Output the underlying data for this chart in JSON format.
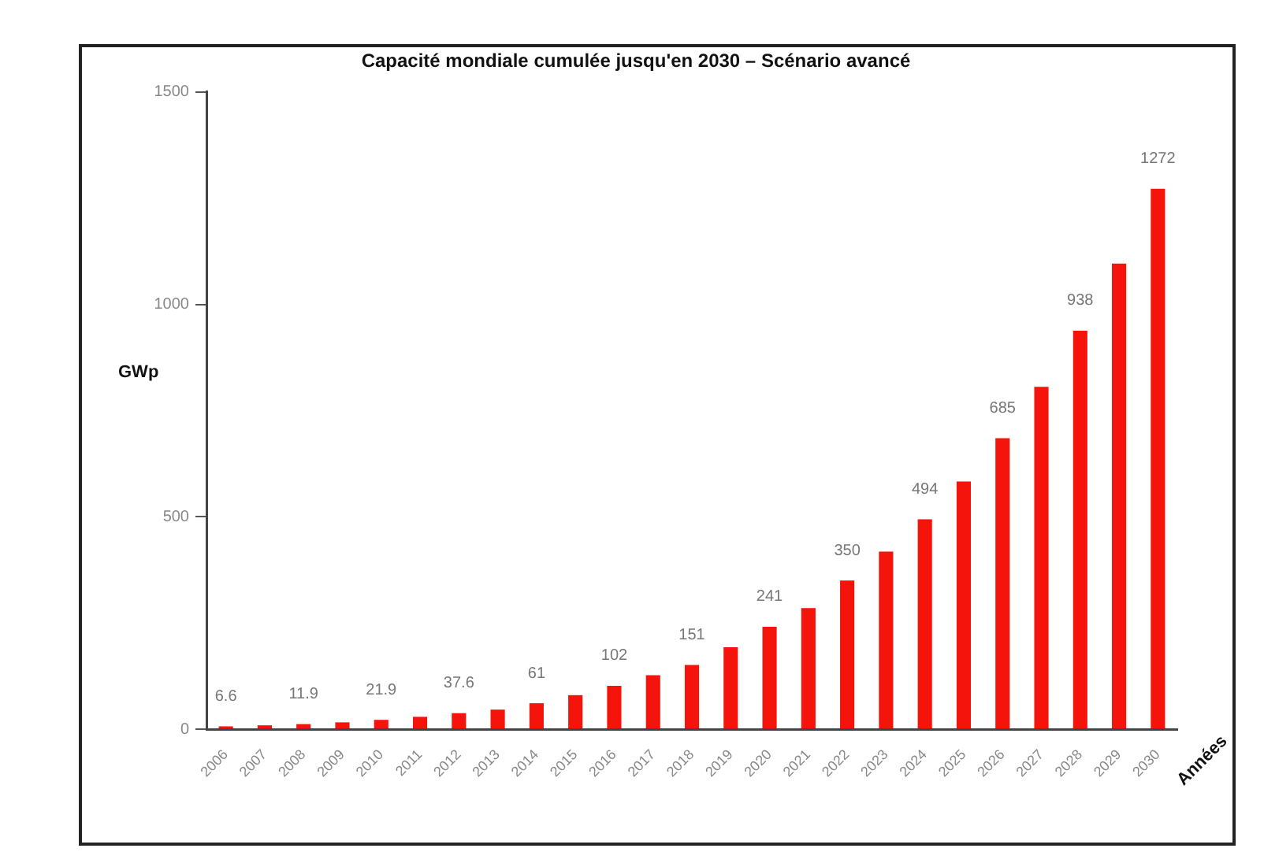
{
  "chart_data": {
    "type": "bar",
    "title": "Capacité mondiale cumulée jusqu'en 2030 – Scénario avancé",
    "xlabel": "Années",
    "ylabel": "GWp",
    "categories": [
      "2006",
      "2007",
      "2008",
      "2009",
      "2010",
      "2011",
      "2012",
      "2013",
      "2014",
      "2015",
      "2016",
      "2017",
      "2018",
      "2019",
      "2020",
      "2021",
      "2022",
      "2023",
      "2024",
      "2025",
      "2026",
      "2027",
      "2028",
      "2029",
      "2030"
    ],
    "values": [
      6.6,
      9,
      11.9,
      16,
      21.9,
      29,
      37.6,
      46,
      61,
      80,
      102,
      127,
      151,
      193,
      241,
      285,
      350,
      418,
      494,
      583,
      685,
      806,
      938,
      1096,
      1272
    ],
    "value_labels": [
      "6.6",
      null,
      "11.9",
      null,
      "21.9",
      null,
      "37.6",
      null,
      "61",
      null,
      "102",
      null,
      "151",
      null,
      "241",
      null,
      "350",
      null,
      "494",
      null,
      "685",
      null,
      "938",
      null,
      "1272"
    ],
    "color": "#f5140c",
    "ylim": [
      0,
      1500
    ],
    "yticks": [
      0,
      500,
      1000,
      1500
    ]
  }
}
